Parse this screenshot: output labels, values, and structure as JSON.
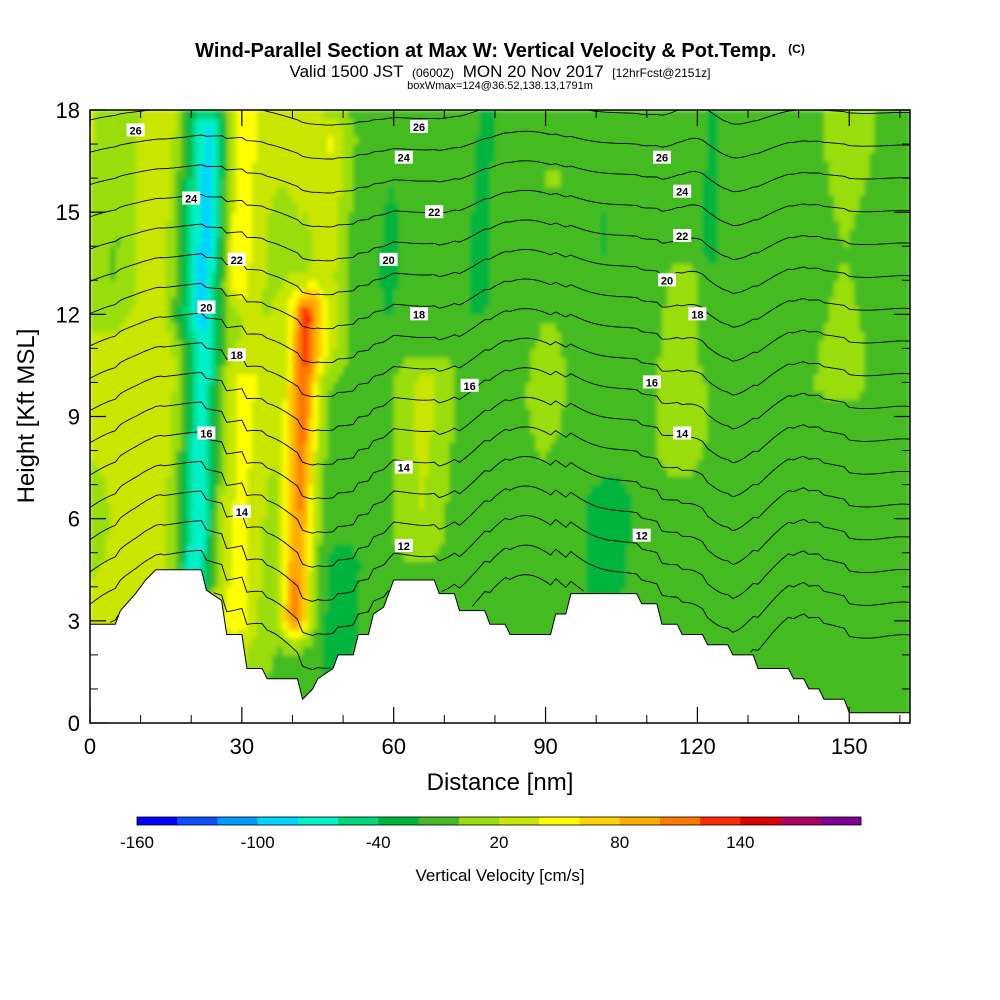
{
  "chart_data": {
    "type": "contour-section",
    "title": "Wind-Parallel Section at Max W: Vertical Velocity & Pot.Temp.",
    "title_mark": "(C)",
    "subtitle": {
      "valid": "Valid 1500 JST",
      "utc": "(0600Z)",
      "date": "MON 20 Nov 2017",
      "fcst": "[12hrFcst@2151z]"
    },
    "box_info": "boxWmax=124@36.52,138.13,1791m",
    "xlabel": "Distance [nm]",
    "ylabel": "Height [Kft MSL]",
    "xlim": [
      0,
      162
    ],
    "ylim": [
      0,
      18
    ],
    "x_ticks": [
      "0",
      "30",
      "60",
      "90",
      "120",
      "150"
    ],
    "x_tick_values": [
      0,
      30,
      60,
      90,
      120,
      150
    ],
    "y_ticks": [
      "0",
      "3",
      "6",
      "9",
      "12",
      "15",
      "18"
    ],
    "y_tick_values": [
      0,
      3,
      6,
      9,
      12,
      15,
      18
    ],
    "colorbar": {
      "label": "Vertical Velocity [cm/s]",
      "tick_labels": [
        "-160",
        "-100",
        "-40",
        "20",
        "80",
        "140"
      ],
      "tick_values": [
        -160,
        -100,
        -40,
        20,
        80,
        140
      ],
      "min": -160,
      "step": 20,
      "colors": [
        "#0000ff",
        "#0a50ff",
        "#009bff",
        "#00d4ff",
        "#00f0c8",
        "#00d67a",
        "#00b43c",
        "#44bb22",
        "#99dd11",
        "#c8e600",
        "#ffff00",
        "#ffd200",
        "#ffaa00",
        "#ff7800",
        "#ff2800",
        "#dc0000",
        "#aa0064",
        "#820096"
      ]
    },
    "w_bands": [
      {
        "x": 4,
        "w": -20,
        "sd": 2.5,
        "y0": 12.5,
        "y1": 18.2
      },
      {
        "x": 12,
        "w": 12,
        "sd": 4,
        "y0": 3,
        "y1": 18.2
      },
      {
        "x": 22,
        "w": -95,
        "sd": 2.6,
        "y0": 4.3,
        "y1": 17.5
      },
      {
        "x": 18,
        "w": -40,
        "sd": 2.2,
        "y0": 12,
        "y1": 18.2
      },
      {
        "x": 28,
        "w": 40,
        "sd": 2.2,
        "y0": 13,
        "y1": 18.2
      },
      {
        "x": 30,
        "w": 25,
        "sd": 3,
        "y0": 3,
        "y1": 10
      },
      {
        "x": 42,
        "w": 110,
        "sd": 2.1,
        "y0": 3.2,
        "y1": 12
      },
      {
        "x": 46,
        "w": 35,
        "sd": 2.5,
        "y0": 11,
        "y1": 17
      },
      {
        "x": 51,
        "w": -30,
        "sd": 2.6,
        "y0": 1.5,
        "y1": 4.5
      },
      {
        "x": 58,
        "w": -12,
        "sd": 3,
        "y0": 12,
        "y1": 18.2
      },
      {
        "x": 66,
        "w": 30,
        "sd": 3.4,
        "y0": 5.5,
        "y1": 10
      },
      {
        "x": 76,
        "w": -20,
        "sd": 1.8,
        "y0": 12.5,
        "y1": 18.2
      },
      {
        "x": 90,
        "w": 8,
        "sd": 5,
        "y0": 4,
        "y1": 16
      },
      {
        "x": 100,
        "w": -12,
        "sd": 2,
        "y0": 14,
        "y1": 18.2
      },
      {
        "x": 103,
        "w": -30,
        "sd": 3,
        "y0": 4.2,
        "y1": 6.5
      },
      {
        "x": 117,
        "w": 25,
        "sd": 3,
        "y0": 8,
        "y1": 13
      },
      {
        "x": 121,
        "w": -15,
        "sd": 2.2,
        "y0": 11,
        "y1": 18.2
      },
      {
        "x": 133,
        "w": -5,
        "sd": 4,
        "y0": 4,
        "y1": 14
      },
      {
        "x": 148,
        "w": 10,
        "sd": 5,
        "y0": 10,
        "y1": 18.2
      }
    ],
    "terrain": [
      [
        0,
        2.9
      ],
      [
        5,
        2.9
      ],
      [
        6,
        3.3
      ],
      [
        9,
        3.8
      ],
      [
        11,
        4.2
      ],
      [
        13,
        4.5
      ],
      [
        22,
        4.5
      ],
      [
        23,
        3.9
      ],
      [
        26,
        3.6
      ],
      [
        27,
        2.6
      ],
      [
        30,
        2.6
      ],
      [
        31,
        1.6
      ],
      [
        34,
        1.6
      ],
      [
        35,
        1.3
      ],
      [
        41,
        1.3
      ],
      [
        42,
        0.7
      ],
      [
        44,
        1.0
      ],
      [
        45,
        1.3
      ],
      [
        48,
        1.6
      ],
      [
        49,
        2.0
      ],
      [
        52,
        2.0
      ],
      [
        53,
        2.6
      ],
      [
        55,
        2.6
      ],
      [
        56,
        3.2
      ],
      [
        58,
        3.4
      ],
      [
        60,
        4.2
      ],
      [
        68,
        4.2
      ],
      [
        69,
        3.8
      ],
      [
        72,
        3.8
      ],
      [
        73,
        3.3
      ],
      [
        78,
        3.3
      ],
      [
        79,
        2.9
      ],
      [
        82,
        2.9
      ],
      [
        83,
        2.6
      ],
      [
        91,
        2.6
      ],
      [
        92,
        3.2
      ],
      [
        94,
        3.2
      ],
      [
        95,
        3.8
      ],
      [
        108,
        3.8
      ],
      [
        109,
        3.5
      ],
      [
        112,
        3.5
      ],
      [
        113,
        2.9
      ],
      [
        116,
        2.9
      ],
      [
        117,
        2.6
      ],
      [
        121,
        2.6
      ],
      [
        122,
        2.3
      ],
      [
        126,
        2.3
      ],
      [
        127,
        2.0
      ],
      [
        131,
        2.0
      ],
      [
        132,
        1.6
      ],
      [
        138,
        1.6
      ],
      [
        139,
        1.3
      ],
      [
        141,
        1.3
      ],
      [
        142,
        1.0
      ],
      [
        144,
        1.0
      ],
      [
        145,
        0.7
      ],
      [
        149,
        0.7
      ],
      [
        150,
        0.3
      ],
      [
        162,
        0.3
      ]
    ],
    "theta_levels": [
      11,
      12,
      13,
      14,
      15,
      16,
      17,
      18,
      19,
      20,
      21,
      22,
      23,
      24,
      25,
      26,
      27
    ],
    "theta_labels": [
      {
        "text": "26",
        "x": 9,
        "y": 17.4
      },
      {
        "text": "24",
        "x": 20,
        "y": 15.4
      },
      {
        "text": "22",
        "x": 29,
        "y": 13.6
      },
      {
        "text": "20",
        "x": 23,
        "y": 12.2
      },
      {
        "text": "18",
        "x": 29,
        "y": 10.8
      },
      {
        "text": "16",
        "x": 23,
        "y": 8.5
      },
      {
        "text": "14",
        "x": 30,
        "y": 6.2
      },
      {
        "text": "26",
        "x": 65,
        "y": 17.5
      },
      {
        "text": "24",
        "x": 62,
        "y": 16.6
      },
      {
        "text": "22",
        "x": 68,
        "y": 15.0
      },
      {
        "text": "20",
        "x": 59,
        "y": 13.6
      },
      {
        "text": "18",
        "x": 65,
        "y": 12.0
      },
      {
        "text": "16",
        "x": 75,
        "y": 9.9
      },
      {
        "text": "14",
        "x": 62,
        "y": 7.5
      },
      {
        "text": "12",
        "x": 62,
        "y": 5.2
      },
      {
        "text": "26",
        "x": 113,
        "y": 16.6
      },
      {
        "text": "24",
        "x": 117,
        "y": 15.6
      },
      {
        "text": "22",
        "x": 117,
        "y": 14.3
      },
      {
        "text": "20",
        "x": 114,
        "y": 13.0
      },
      {
        "text": "18",
        "x": 120,
        "y": 12.0
      },
      {
        "text": "16",
        "x": 111,
        "y": 10.0
      },
      {
        "text": "14",
        "x": 117,
        "y": 8.5
      },
      {
        "text": "12",
        "x": 109,
        "y": 5.5
      }
    ]
  }
}
